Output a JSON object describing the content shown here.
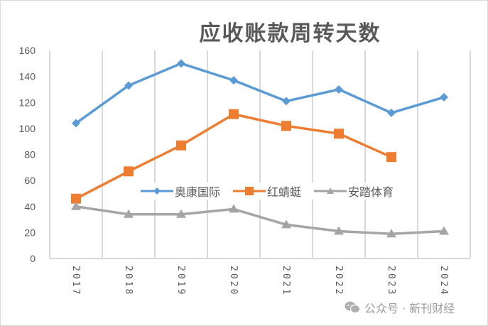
{
  "chart_data": {
    "type": "line",
    "title": "应收账款周转天数",
    "xlabel": "",
    "ylabel": "",
    "categories": [
      "2017",
      "2018",
      "2019",
      "2020",
      "2021",
      "2022",
      "2023",
      "2024"
    ],
    "series": [
      {
        "name": "奥康国际",
        "color": "#5b9bd5",
        "marker": "diamond",
        "values": [
          104,
          133,
          150,
          137,
          121,
          130,
          112,
          124
        ]
      },
      {
        "name": "红蜻蜓",
        "color": "#ed7d31",
        "marker": "square",
        "values": [
          46,
          67,
          87,
          111,
          102,
          96,
          78,
          null
        ]
      },
      {
        "name": "安踏体育",
        "color": "#a5a5a5",
        "marker": "triangle",
        "values": [
          40,
          34,
          34,
          38,
          26,
          21,
          19,
          21
        ]
      }
    ],
    "ylim": [
      0,
      160
    ],
    "yticks": [
      0,
      20,
      40,
      60,
      80,
      100,
      120,
      140,
      160
    ],
    "grid": {
      "vertical": true,
      "horizontal": false
    },
    "legend_position": "inside-center"
  },
  "watermark": {
    "icon": "wechat-icon",
    "text": "公众号 · 新刊财经"
  }
}
